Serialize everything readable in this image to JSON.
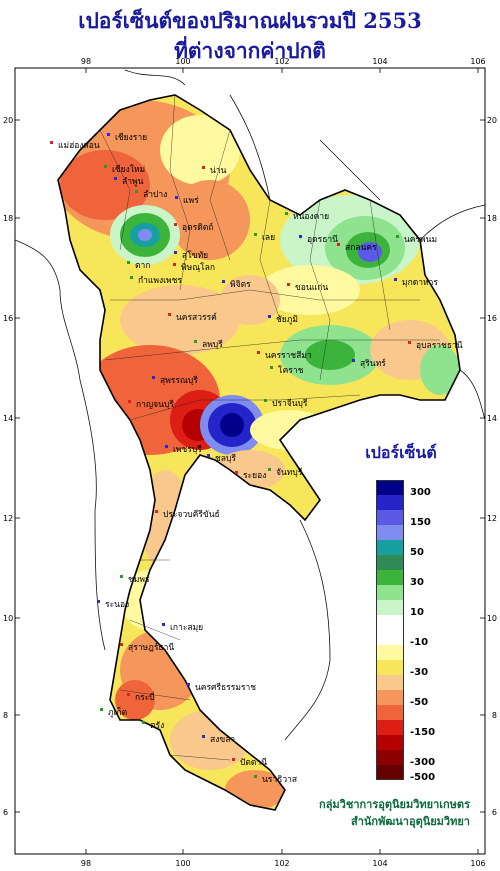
{
  "title": {
    "line1": "เปอร์เซ็นต์ของปริมาณฝนรวมปี  2553",
    "line2": "ที่ต่างจากค่าปกติ"
  },
  "axes": {
    "x_ticks": [
      "98",
      "100",
      "102",
      "104",
      "106"
    ],
    "y_ticks": [
      "20",
      "18",
      "16",
      "14",
      "12",
      "10",
      "8",
      "6"
    ]
  },
  "places": [
    "เชียงราย",
    "แม่ฮ่องสอน",
    "เชียงใหม่",
    "ลำพูน",
    "น่าน",
    "ลำปาง",
    "แพร่",
    "อุตรดิตถ์",
    "ตาก",
    "สุโขทัย",
    "พิษณุโลก",
    "กำแพงเพชร",
    "พิจิตร",
    "นครสวรรค์",
    "หนองคาย",
    "อุดรธานี",
    "สกลนคร",
    "นครพนม",
    "มุกดาหาร",
    "ขอนแก่น",
    "เลย",
    "ชัยภูมิ",
    "นครราชสีมา",
    "โคราช",
    "สุรินทร์",
    "อุบลราชธานี",
    "ลพบุรี",
    "สุพรรณบุรี",
    "กาญจนบุรี",
    "ปราจีนบุรี",
    "ชลบุรี",
    "ระยอง",
    "จันทบุรี",
    "เพชรบุรี",
    "ประจวบคีรีขันธ์",
    "ชุมพร",
    "ระนอง",
    "สุราษฎร์ธานี",
    "ภูเก็ต",
    "นครศรีธรรมราช",
    "กระบี่",
    "ตรัง",
    "สงขลา",
    "ปัตตานี",
    "นราธิวาส",
    "เกาะสมุย"
  ],
  "legend": {
    "title": "เปอร์เซ็นต์",
    "bins": [
      {
        "color": "#00008b",
        "label": "300"
      },
      {
        "color": "#2424c8",
        "label": ""
      },
      {
        "color": "#5a5ae6",
        "label": "150"
      },
      {
        "color": "#7f8cf0",
        "label": ""
      },
      {
        "color": "#16a0a0",
        "label": "50"
      },
      {
        "color": "#2e8b57",
        "label": ""
      },
      {
        "color": "#3cb43c",
        "label": "30"
      },
      {
        "color": "#8fe38f",
        "label": ""
      },
      {
        "color": "#c9f5c9",
        "label": "10"
      },
      {
        "color": "#ffffff",
        "label": ""
      },
      {
        "color": "#ffffff",
        "label": "-10"
      },
      {
        "color": "#fffaa0",
        "label": ""
      },
      {
        "color": "#f7e65a",
        "label": "-30"
      },
      {
        "color": "#f9c88c",
        "label": ""
      },
      {
        "color": "#f5965a",
        "label": "-50"
      },
      {
        "color": "#f0643c",
        "label": ""
      },
      {
        "color": "#dc1e14",
        "label": "-150"
      },
      {
        "color": "#b40000",
        "label": ""
      },
      {
        "color": "#8c0000",
        "label": "-300"
      },
      {
        "color": "#640000",
        "label": "-500"
      }
    ]
  },
  "credits": {
    "line1": "กลุ่มวิชาการอุตุนิยมวิทยาเกษตร",
    "line2": "สำนักพัฒนาอุตุนิยมวิทยา"
  }
}
